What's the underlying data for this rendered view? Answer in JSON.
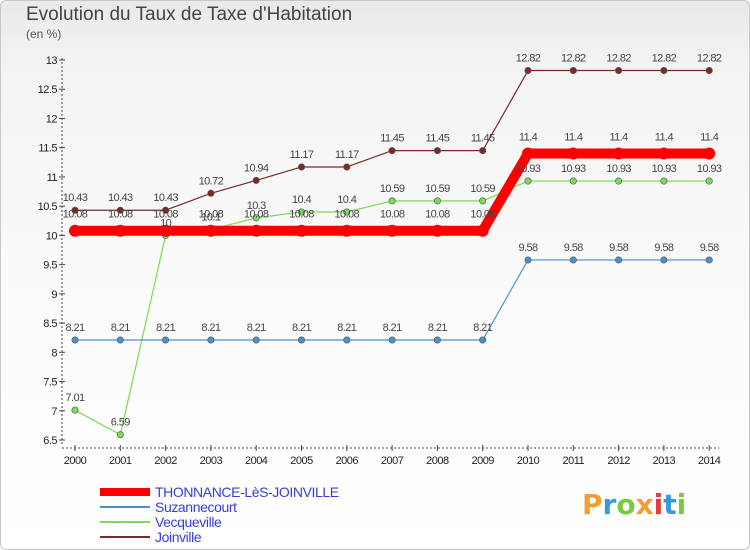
{
  "chart_data": {
    "type": "line",
    "title": "Evolution du Taux de Taxe d'Habitation",
    "ylabel": "(en %)",
    "xlabel": "",
    "x": [
      "2000",
      "2001",
      "2002",
      "2003",
      "2004",
      "2005",
      "2006",
      "2007",
      "2008",
      "2009",
      "2010",
      "2011",
      "2012",
      "2013",
      "2014"
    ],
    "ylim": [
      6.5,
      13
    ],
    "yticks": [
      "6.5",
      "7",
      "7.5",
      "8",
      "8.5",
      "9",
      "9.5",
      "10",
      "10.5",
      "11",
      "11.5",
      "12",
      "12.5",
      "13"
    ],
    "grid": false,
    "legend_position": "bottom-left",
    "series": [
      {
        "name": "THONNANCE-LèS-JOINVILLE",
        "color": "#ff0000",
        "values": [
          10.08,
          10.08,
          10.08,
          10.08,
          10.08,
          10.08,
          10.08,
          10.08,
          10.08,
          10.08,
          11.4,
          11.4,
          11.4,
          11.4,
          11.4
        ],
        "labels": [
          "10.08",
          "10.08",
          "10.08",
          "10.08",
          "10.08",
          "10.08",
          "10.08",
          "10.08",
          "10.08",
          "10.08",
          "11.4",
          "11.4",
          "11.4",
          "11.4",
          "11.4"
        ]
      },
      {
        "name": "Suzannecourt",
        "color": "#4f8fc9",
        "values": [
          8.21,
          8.21,
          8.21,
          8.21,
          8.21,
          8.21,
          8.21,
          8.21,
          8.21,
          8.21,
          9.58,
          9.58,
          9.58,
          9.58,
          9.58
        ],
        "labels": [
          "8.21",
          "8.21",
          "8.21",
          "8.21",
          "8.21",
          "8.21",
          "8.21",
          "8.21",
          "8.21",
          "8.21",
          "9.58",
          "9.58",
          "9.58",
          "9.58",
          "9.58"
        ]
      },
      {
        "name": "Vecqueville",
        "color": "#7ed957",
        "values": [
          7.01,
          6.59,
          10,
          10.1,
          10.3,
          10.4,
          10.4,
          10.59,
          10.59,
          10.59,
          10.93,
          10.93,
          10.93,
          10.93,
          10.93
        ],
        "labels": [
          "7.01",
          "6.59",
          "10",
          "10.1",
          "10.3",
          "10.4",
          "10.4",
          "10.59",
          "10.59",
          "10.59",
          "10.93",
          "10.93",
          "10.93",
          "10.93",
          "10.93"
        ]
      },
      {
        "name": "Joinville",
        "color": "#7a2a2a",
        "values": [
          10.43,
          10.43,
          10.43,
          10.72,
          10.94,
          11.17,
          11.17,
          11.45,
          11.45,
          11.45,
          12.82,
          12.82,
          12.82,
          12.82,
          12.82
        ],
        "labels": [
          "10.43",
          "10.43",
          "10.43",
          "10.72",
          "10.94",
          "11.17",
          "11.17",
          "11.45",
          "11.45",
          "11.45",
          "12.82",
          "12.82",
          "12.82",
          "12.82",
          "12.82"
        ]
      }
    ]
  },
  "brand": {
    "letters": [
      "P",
      "r",
      "o",
      "x",
      "i",
      "t",
      "i"
    ],
    "colors": [
      "#f0a030",
      "#3a9ad9",
      "#7ac943",
      "#f0a030",
      "#e63b3b",
      "#3a9ad9",
      "#7ac943"
    ]
  }
}
